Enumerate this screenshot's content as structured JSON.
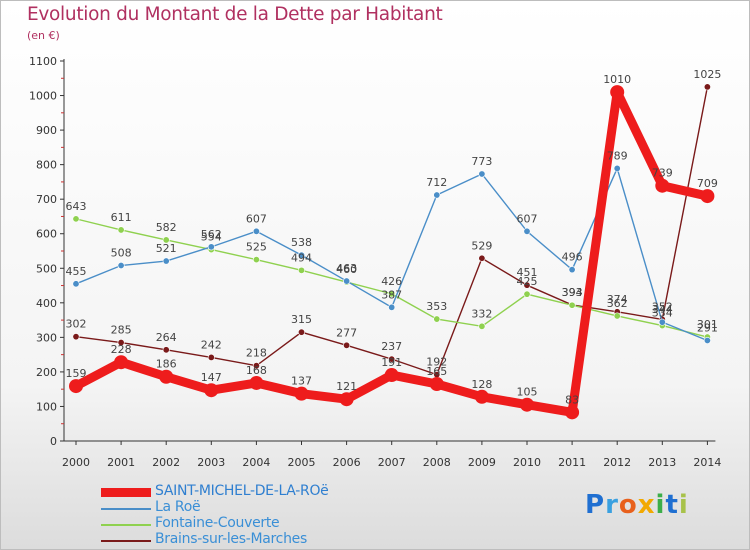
{
  "title": "Evolution du Montant de la Dette par Habitant",
  "unit": "(en €)",
  "brand": {
    "text": "Proxiti",
    "colors": [
      "#1f6fd1",
      "#3aa0e0",
      "#e8601c",
      "#f2a900",
      "#3cae49",
      "#1f6fd1",
      "#a8c24a"
    ]
  },
  "chart_data": {
    "type": "line",
    "x": [
      "2000",
      "2001",
      "2002",
      "2003",
      "2004",
      "2005",
      "2006",
      "2007",
      "2008",
      "2009",
      "2010",
      "2011",
      "2012",
      "2013",
      "2014"
    ],
    "ylim": [
      0,
      1100
    ],
    "yticks": [
      0,
      100,
      200,
      300,
      400,
      500,
      600,
      700,
      800,
      900,
      1000,
      1100
    ],
    "grid": false,
    "legend_position": "bottom-left",
    "series": [
      {
        "name": "SAINT-MICHEL-DE-LA-ROë",
        "color": "#ee1c1c",
        "highlight": true,
        "values": [
          159,
          228,
          186,
          147,
          168,
          137,
          121,
          191,
          165,
          128,
          105,
          83,
          1010,
          739,
          709
        ],
        "labels": [
          "159",
          "228",
          "186",
          "147",
          "168",
          "137",
          "121",
          "191",
          "165",
          "128",
          "105",
          "83",
          "1010",
          "739",
          "709"
        ]
      },
      {
        "name": "La Roë",
        "color": "#4a8ec8",
        "values": [
          455,
          508,
          521,
          562,
          607,
          538,
          463,
          387,
          712,
          773,
          607,
          496,
          789,
          344,
          291
        ],
        "labels": [
          "455",
          "508",
          "521",
          "562",
          "607",
          "538",
          "463",
          "387",
          "712",
          "773",
          "607",
          "496",
          "789",
          "344",
          "291"
        ]
      },
      {
        "name": "Fontaine-Couverte",
        "color": "#8fd14f",
        "values": [
          643,
          611,
          582,
          554,
          525,
          494,
          460,
          426,
          353,
          332,
          425,
          393,
          362,
          334,
          301
        ],
        "labels": [
          "643",
          "611",
          "582",
          "554",
          "525",
          "494",
          "460",
          "426",
          "353",
          "332",
          "425",
          "393",
          "362",
          "334",
          "301"
        ]
      },
      {
        "name": "Brains-sur-les-Marches",
        "color": "#7a1a1a",
        "values": [
          302,
          285,
          264,
          242,
          218,
          315,
          277,
          237,
          192,
          529,
          451,
          394,
          374,
          352,
          1025
        ],
        "labels": [
          "302",
          "285",
          "264",
          "242",
          "218",
          "315",
          "277",
          "237",
          "192",
          "529",
          "451",
          "394",
          "374",
          "352",
          "1025"
        ]
      }
    ]
  }
}
